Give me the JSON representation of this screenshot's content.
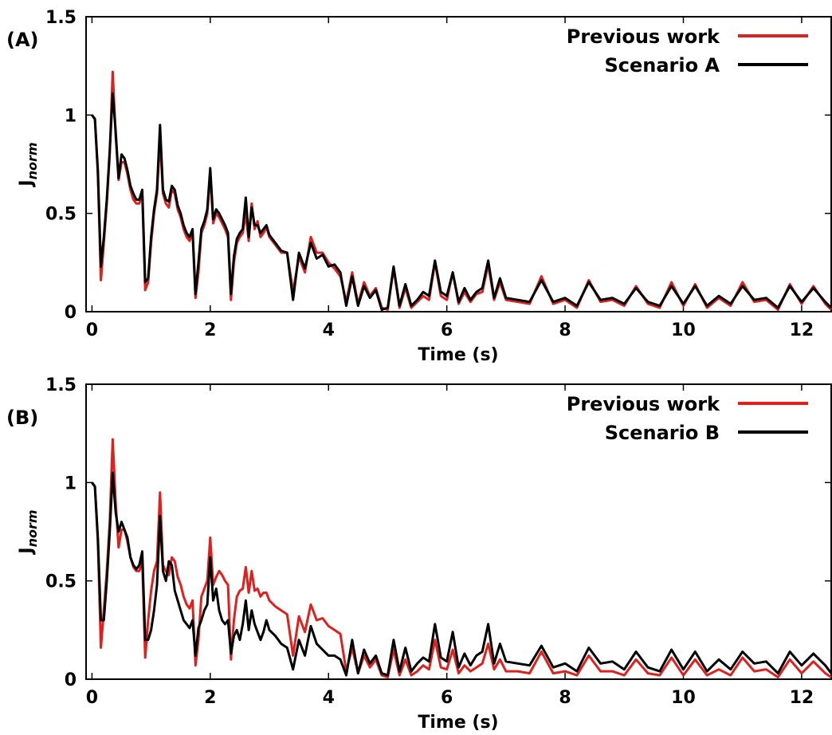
{
  "chart_data": [
    {
      "type": "line",
      "panel_label": "(A)",
      "xlabel": "Time (s)",
      "ylabel": "J",
      "ylabel_sub": "norm",
      "xlim": [
        -0.1,
        12.5
      ],
      "ylim": [
        0,
        1.5
      ],
      "xticks": [
        "0",
        "2",
        "4",
        "6",
        "8",
        "10",
        "12"
      ],
      "yticks": [
        "0",
        "0.5",
        "1",
        "1.5"
      ],
      "legend_position": "top-right",
      "series": [
        {
          "name": "Previous work",
          "color": "#e0201c",
          "x": [
            0,
            0.05,
            0.1,
            0.15,
            0.2,
            0.25,
            0.3,
            0.35,
            0.4,
            0.45,
            0.5,
            0.55,
            0.6,
            0.65,
            0.7,
            0.75,
            0.8,
            0.85,
            0.9,
            0.95,
            1.0,
            1.05,
            1.1,
            1.15,
            1.2,
            1.25,
            1.3,
            1.35,
            1.4,
            1.45,
            1.5,
            1.55,
            1.6,
            1.65,
            1.7,
            1.75,
            1.8,
            1.85,
            1.9,
            1.95,
            2.0,
            2.05,
            2.1,
            2.15,
            2.2,
            2.25,
            2.3,
            2.35,
            2.4,
            2.45,
            2.5,
            2.55,
            2.6,
            2.65,
            2.7,
            2.75,
            2.8,
            2.85,
            2.9,
            2.95,
            3.0,
            3.1,
            3.2,
            3.3,
            3.4,
            3.5,
            3.6,
            3.7,
            3.8,
            3.9,
            4.0,
            4.1,
            4.2,
            4.3,
            4.4,
            4.5,
            4.6,
            4.7,
            4.8,
            4.9,
            5.0,
            5.1,
            5.2,
            5.3,
            5.4,
            5.5,
            5.6,
            5.7,
            5.8,
            5.9,
            6.0,
            6.1,
            6.2,
            6.3,
            6.4,
            6.5,
            6.6,
            6.7,
            6.8,
            6.9,
            7.0,
            7.2,
            7.4,
            7.6,
            7.8,
            8.0,
            8.2,
            8.4,
            8.6,
            8.8,
            9.0,
            9.2,
            9.4,
            9.6,
            9.8,
            10.0,
            10.2,
            10.4,
            10.6,
            10.8,
            11.0,
            11.2,
            11.4,
            11.6,
            11.8,
            12.0,
            12.2,
            12.4,
            12.5
          ],
          "values": [
            1.0,
            0.98,
            0.7,
            0.16,
            0.35,
            0.55,
            0.8,
            1.22,
            0.9,
            0.67,
            0.76,
            0.76,
            0.7,
            0.62,
            0.57,
            0.55,
            0.55,
            0.6,
            0.11,
            0.15,
            0.35,
            0.5,
            0.6,
            0.88,
            0.6,
            0.55,
            0.53,
            0.62,
            0.6,
            0.52,
            0.48,
            0.42,
            0.38,
            0.36,
            0.4,
            0.07,
            0.2,
            0.4,
            0.44,
            0.5,
            0.7,
            0.45,
            0.5,
            0.48,
            0.45,
            0.42,
            0.38,
            0.06,
            0.25,
            0.35,
            0.38,
            0.4,
            0.5,
            0.36,
            0.55,
            0.42,
            0.46,
            0.38,
            0.4,
            0.43,
            0.38,
            0.34,
            0.3,
            0.3,
            0.1,
            0.28,
            0.2,
            0.38,
            0.3,
            0.3,
            0.25,
            0.22,
            0.18,
            0.05,
            0.2,
            0.04,
            0.15,
            0.08,
            0.12,
            0.02,
            0.01,
            0.22,
            0.02,
            0.12,
            0.02,
            0.05,
            0.08,
            0.06,
            0.25,
            0.08,
            0.06,
            0.2,
            0.04,
            0.1,
            0.05,
            0.09,
            0.1,
            0.24,
            0.06,
            0.15,
            0.06,
            0.05,
            0.04,
            0.18,
            0.04,
            0.06,
            0.02,
            0.16,
            0.05,
            0.06,
            0.03,
            0.13,
            0.04,
            0.02,
            0.15,
            0.03,
            0.14,
            0.02,
            0.07,
            0.03,
            0.15,
            0.05,
            0.06,
            0.01,
            0.14,
            0.04,
            0.13,
            0.04,
            0.01
          ]
        },
        {
          "name": "Scenario A",
          "color": "#000000",
          "x": [
            0,
            0.05,
            0.1,
            0.15,
            0.2,
            0.25,
            0.3,
            0.35,
            0.4,
            0.45,
            0.5,
            0.55,
            0.6,
            0.65,
            0.7,
            0.75,
            0.8,
            0.85,
            0.9,
            0.95,
            1.0,
            1.05,
            1.1,
            1.15,
            1.2,
            1.25,
            1.3,
            1.35,
            1.4,
            1.45,
            1.5,
            1.55,
            1.6,
            1.65,
            1.7,
            1.75,
            1.8,
            1.85,
            1.9,
            1.95,
            2.0,
            2.05,
            2.1,
            2.15,
            2.2,
            2.25,
            2.3,
            2.35,
            2.4,
            2.45,
            2.5,
            2.55,
            2.6,
            2.65,
            2.7,
            2.75,
            2.8,
            2.85,
            2.9,
            2.95,
            3.0,
            3.1,
            3.2,
            3.3,
            3.4,
            3.5,
            3.6,
            3.7,
            3.8,
            3.9,
            4.0,
            4.1,
            4.2,
            4.3,
            4.4,
            4.5,
            4.6,
            4.7,
            4.8,
            4.9,
            5.0,
            5.1,
            5.2,
            5.3,
            5.4,
            5.5,
            5.6,
            5.7,
            5.8,
            5.9,
            6.0,
            6.1,
            6.2,
            6.3,
            6.4,
            6.5,
            6.6,
            6.7,
            6.8,
            6.9,
            7.0,
            7.2,
            7.4,
            7.6,
            7.8,
            8.0,
            8.2,
            8.4,
            8.6,
            8.8,
            9.0,
            9.2,
            9.4,
            9.6,
            9.8,
            10.0,
            10.2,
            10.4,
            10.6,
            10.8,
            11.0,
            11.2,
            11.4,
            11.6,
            11.8,
            12.0,
            12.2,
            12.4,
            12.5
          ],
          "values": [
            1.0,
            0.98,
            0.72,
            0.23,
            0.38,
            0.57,
            0.82,
            1.11,
            0.92,
            0.68,
            0.8,
            0.78,
            0.72,
            0.64,
            0.6,
            0.57,
            0.57,
            0.62,
            0.15,
            0.17,
            0.38,
            0.52,
            0.62,
            0.95,
            0.62,
            0.57,
            0.56,
            0.64,
            0.62,
            0.54,
            0.5,
            0.44,
            0.4,
            0.38,
            0.42,
            0.09,
            0.25,
            0.42,
            0.46,
            0.52,
            0.73,
            0.47,
            0.52,
            0.5,
            0.47,
            0.44,
            0.4,
            0.09,
            0.28,
            0.37,
            0.4,
            0.42,
            0.58,
            0.38,
            0.53,
            0.44,
            0.44,
            0.4,
            0.42,
            0.44,
            0.39,
            0.35,
            0.31,
            0.3,
            0.06,
            0.3,
            0.22,
            0.35,
            0.27,
            0.29,
            0.23,
            0.24,
            0.2,
            0.03,
            0.18,
            0.03,
            0.13,
            0.07,
            0.11,
            0.01,
            0.02,
            0.23,
            0.03,
            0.14,
            0.03,
            0.06,
            0.1,
            0.08,
            0.26,
            0.1,
            0.08,
            0.2,
            0.05,
            0.12,
            0.06,
            0.1,
            0.12,
            0.26,
            0.07,
            0.17,
            0.07,
            0.06,
            0.05,
            0.16,
            0.05,
            0.07,
            0.03,
            0.15,
            0.06,
            0.07,
            0.04,
            0.12,
            0.05,
            0.03,
            0.13,
            0.04,
            0.13,
            0.03,
            0.08,
            0.04,
            0.13,
            0.06,
            0.07,
            0.02,
            0.13,
            0.05,
            0.12,
            0.05,
            0.02
          ]
        }
      ]
    },
    {
      "type": "line",
      "panel_label": "(B)",
      "xlabel": "Time (s)",
      "ylabel": "J",
      "ylabel_sub": "norm",
      "xlim": [
        -0.1,
        12.5
      ],
      "ylim": [
        0,
        1.5
      ],
      "xticks": [
        "0",
        "2",
        "4",
        "6",
        "8",
        "10",
        "12"
      ],
      "yticks": [
        "0",
        "0.5",
        "1",
        "1.5"
      ],
      "legend_position": "top-right",
      "series": [
        {
          "name": "Previous work",
          "color": "#e0201c",
          "x": [
            0,
            0.05,
            0.1,
            0.15,
            0.2,
            0.25,
            0.3,
            0.35,
            0.4,
            0.45,
            0.5,
            0.55,
            0.6,
            0.65,
            0.7,
            0.75,
            0.8,
            0.85,
            0.9,
            0.95,
            1.0,
            1.05,
            1.1,
            1.15,
            1.2,
            1.25,
            1.3,
            1.35,
            1.4,
            1.45,
            1.5,
            1.55,
            1.6,
            1.65,
            1.7,
            1.75,
            1.8,
            1.85,
            1.9,
            1.95,
            2.0,
            2.05,
            2.1,
            2.15,
            2.2,
            2.25,
            2.3,
            2.35,
            2.4,
            2.45,
            2.5,
            2.55,
            2.6,
            2.65,
            2.7,
            2.75,
            2.8,
            2.85,
            2.9,
            2.95,
            3.0,
            3.1,
            3.2,
            3.3,
            3.4,
            3.5,
            3.6,
            3.7,
            3.8,
            3.9,
            4.0,
            4.1,
            4.2,
            4.3,
            4.4,
            4.5,
            4.6,
            4.7,
            4.8,
            4.9,
            5.0,
            5.1,
            5.2,
            5.3,
            5.4,
            5.5,
            5.6,
            5.7,
            5.8,
            5.9,
            6.0,
            6.1,
            6.2,
            6.3,
            6.4,
            6.5,
            6.6,
            6.7,
            6.8,
            6.9,
            7.0,
            7.2,
            7.4,
            7.6,
            7.8,
            8.0,
            8.2,
            8.4,
            8.6,
            8.8,
            9.0,
            9.2,
            9.4,
            9.6,
            9.8,
            10.0,
            10.2,
            10.4,
            10.6,
            10.8,
            11.0,
            11.2,
            11.4,
            11.6,
            11.8,
            12.0,
            12.2,
            12.4,
            12.5
          ],
          "values": [
            1.0,
            0.98,
            0.7,
            0.16,
            0.35,
            0.55,
            0.8,
            1.22,
            0.9,
            0.67,
            0.76,
            0.76,
            0.7,
            0.62,
            0.57,
            0.55,
            0.55,
            0.6,
            0.11,
            0.3,
            0.45,
            0.55,
            0.6,
            0.95,
            0.58,
            0.55,
            0.53,
            0.62,
            0.6,
            0.52,
            0.48,
            0.42,
            0.38,
            0.36,
            0.4,
            0.07,
            0.2,
            0.42,
            0.46,
            0.5,
            0.72,
            0.48,
            0.52,
            0.55,
            0.53,
            0.5,
            0.48,
            0.1,
            0.3,
            0.42,
            0.45,
            0.46,
            0.57,
            0.44,
            0.55,
            0.45,
            0.46,
            0.42,
            0.44,
            0.44,
            0.4,
            0.37,
            0.35,
            0.33,
            0.12,
            0.32,
            0.24,
            0.38,
            0.3,
            0.31,
            0.27,
            0.25,
            0.23,
            0.04,
            0.16,
            0.03,
            0.12,
            0.06,
            0.1,
            0.02,
            0.01,
            0.15,
            0.02,
            0.1,
            0.02,
            0.04,
            0.07,
            0.05,
            0.2,
            0.06,
            0.05,
            0.15,
            0.03,
            0.07,
            0.04,
            0.06,
            0.08,
            0.18,
            0.05,
            0.1,
            0.04,
            0.04,
            0.03,
            0.14,
            0.03,
            0.04,
            0.02,
            0.12,
            0.04,
            0.04,
            0.02,
            0.1,
            0.03,
            0.02,
            0.11,
            0.02,
            0.1,
            0.02,
            0.05,
            0.02,
            0.11,
            0.04,
            0.05,
            0.01,
            0.1,
            0.03,
            0.09,
            0.03,
            0.01
          ]
        },
        {
          "name": "Scenario B",
          "color": "#000000",
          "x": [
            0,
            0.05,
            0.1,
            0.15,
            0.2,
            0.25,
            0.3,
            0.35,
            0.4,
            0.45,
            0.5,
            0.55,
            0.6,
            0.65,
            0.7,
            0.75,
            0.8,
            0.85,
            0.9,
            0.95,
            1.0,
            1.05,
            1.1,
            1.15,
            1.2,
            1.25,
            1.3,
            1.35,
            1.4,
            1.45,
            1.5,
            1.55,
            1.6,
            1.65,
            1.7,
            1.75,
            1.8,
            1.85,
            1.9,
            1.95,
            2.0,
            2.05,
            2.1,
            2.15,
            2.2,
            2.25,
            2.3,
            2.35,
            2.4,
            2.45,
            2.5,
            2.55,
            2.6,
            2.65,
            2.7,
            2.75,
            2.8,
            2.85,
            2.9,
            2.95,
            3.0,
            3.1,
            3.2,
            3.3,
            3.4,
            3.5,
            3.6,
            3.7,
            3.8,
            3.9,
            4.0,
            4.1,
            4.2,
            4.3,
            4.4,
            4.5,
            4.6,
            4.7,
            4.8,
            4.9,
            5.0,
            5.1,
            5.2,
            5.3,
            5.4,
            5.5,
            5.6,
            5.7,
            5.8,
            5.9,
            6.0,
            6.1,
            6.2,
            6.3,
            6.4,
            6.5,
            6.6,
            6.7,
            6.8,
            6.9,
            7.0,
            7.2,
            7.4,
            7.6,
            7.8,
            8.0,
            8.2,
            8.4,
            8.6,
            8.8,
            9.0,
            9.2,
            9.4,
            9.6,
            9.8,
            10.0,
            10.2,
            10.4,
            10.6,
            10.8,
            11.0,
            11.2,
            11.4,
            11.6,
            11.8,
            12.0,
            12.2,
            12.4,
            12.5
          ],
          "values": [
            1.0,
            0.98,
            0.72,
            0.3,
            0.3,
            0.5,
            0.75,
            1.05,
            0.85,
            0.75,
            0.8,
            0.76,
            0.72,
            0.62,
            0.58,
            0.56,
            0.58,
            0.65,
            0.2,
            0.2,
            0.25,
            0.35,
            0.48,
            0.83,
            0.55,
            0.5,
            0.6,
            0.58,
            0.45,
            0.4,
            0.35,
            0.3,
            0.28,
            0.26,
            0.3,
            0.12,
            0.26,
            0.3,
            0.35,
            0.38,
            0.62,
            0.4,
            0.46,
            0.35,
            0.3,
            0.28,
            0.3,
            0.13,
            0.22,
            0.25,
            0.2,
            0.28,
            0.4,
            0.25,
            0.35,
            0.28,
            0.24,
            0.2,
            0.24,
            0.3,
            0.25,
            0.22,
            0.18,
            0.16,
            0.05,
            0.2,
            0.12,
            0.27,
            0.18,
            0.15,
            0.12,
            0.12,
            0.1,
            0.02,
            0.2,
            0.03,
            0.15,
            0.08,
            0.12,
            0.03,
            0.02,
            0.2,
            0.04,
            0.16,
            0.04,
            0.08,
            0.11,
            0.09,
            0.28,
            0.11,
            0.09,
            0.24,
            0.06,
            0.13,
            0.07,
            0.12,
            0.14,
            0.28,
            0.08,
            0.18,
            0.09,
            0.08,
            0.07,
            0.17,
            0.06,
            0.08,
            0.04,
            0.16,
            0.08,
            0.09,
            0.05,
            0.14,
            0.06,
            0.04,
            0.15,
            0.05,
            0.14,
            0.04,
            0.1,
            0.05,
            0.14,
            0.08,
            0.09,
            0.03,
            0.14,
            0.07,
            0.13,
            0.07,
            0.03
          ]
        }
      ]
    }
  ]
}
